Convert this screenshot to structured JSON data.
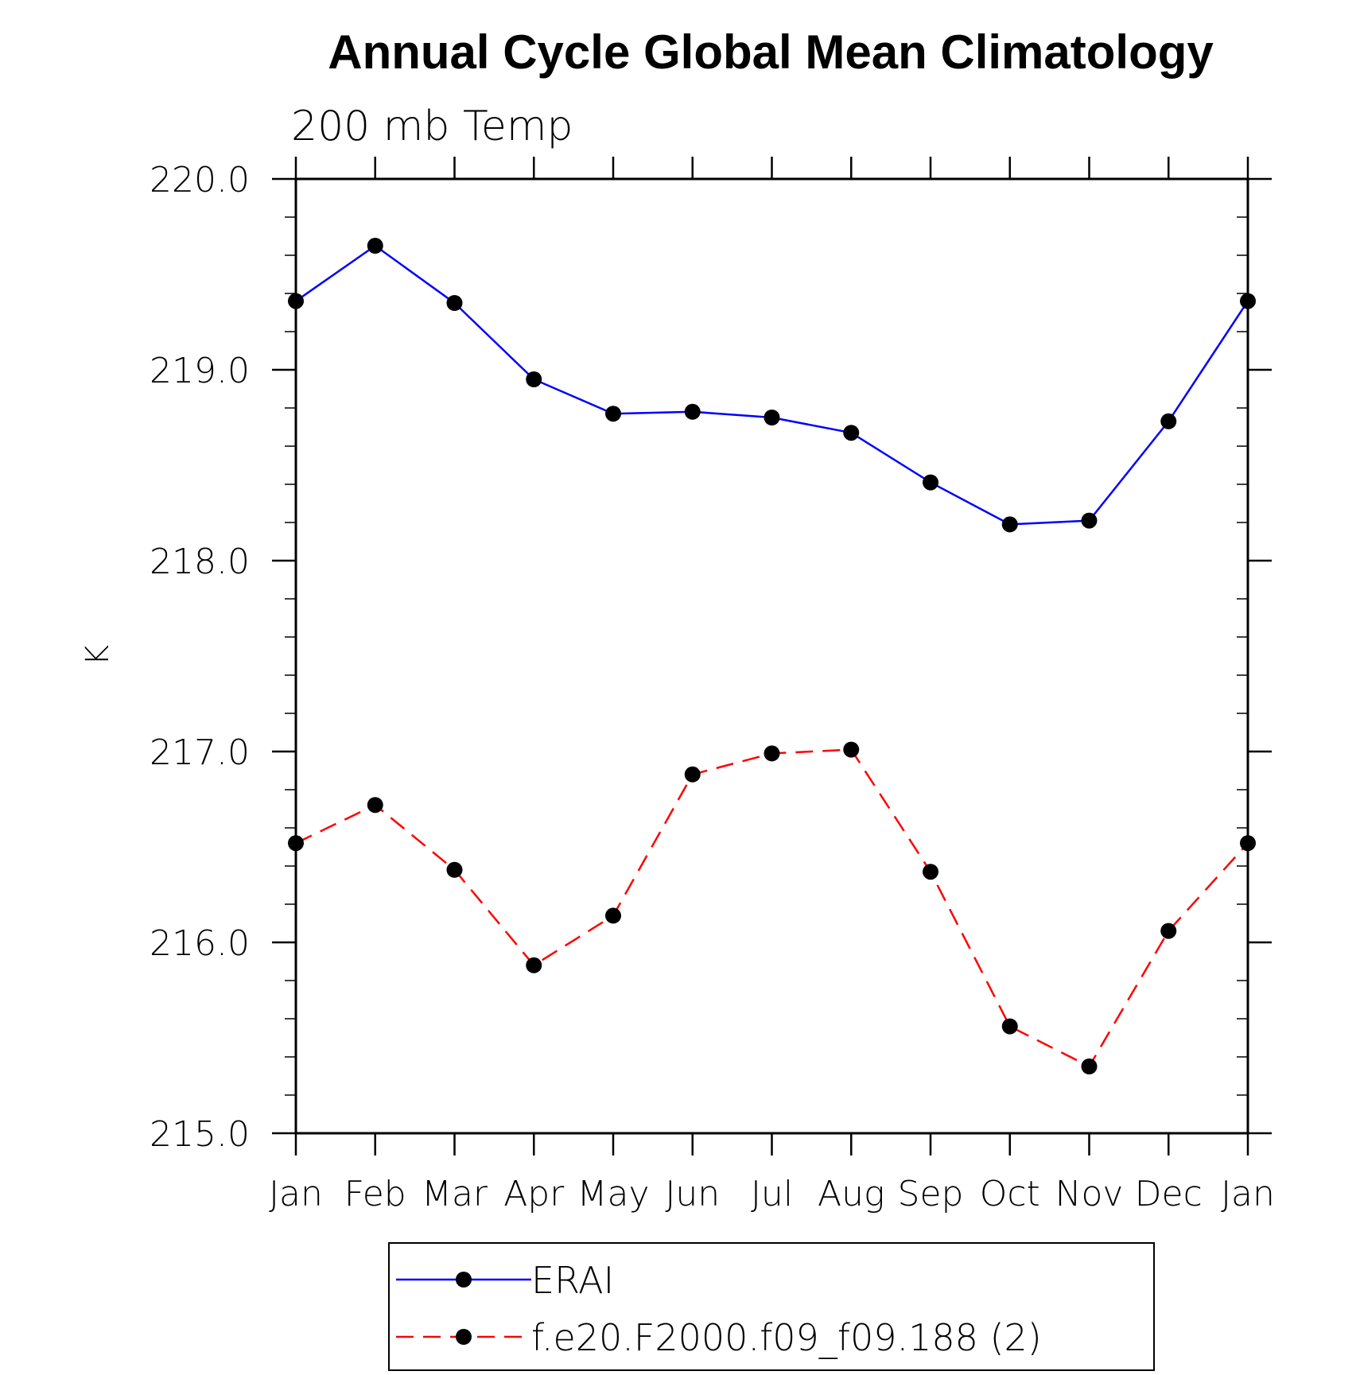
{
  "chart_data": {
    "type": "line",
    "title": "Annual Cycle Global Mean Climatology",
    "subtitle": "200 mb Temp",
    "ylabel": "K",
    "xlabel": "",
    "categories": [
      "Jan",
      "Feb",
      "Mar",
      "Apr",
      "May",
      "Jun",
      "Jul",
      "Aug",
      "Sep",
      "Oct",
      "Nov",
      "Dec",
      "Jan"
    ],
    "ylim": [
      215.0,
      220.0
    ],
    "yticks": [
      "215.0",
      "216.0",
      "217.0",
      "218.0",
      "219.0",
      "220.0"
    ],
    "grid": false,
    "legend_position": "bottom",
    "series": [
      {
        "name": "ERAI",
        "color": "#0000ff",
        "line_style": "solid",
        "marker": "filled-circle",
        "values": [
          219.36,
          219.65,
          219.35,
          218.95,
          218.77,
          218.78,
          218.75,
          218.67,
          218.41,
          218.19,
          218.21,
          218.73,
          219.36
        ]
      },
      {
        "name": "f.e20.F2000.f09_f09.188 (2)",
        "color": "#ff0000",
        "line_style": "dashed",
        "marker": "filled-circle",
        "values": [
          216.52,
          216.72,
          216.38,
          215.88,
          216.14,
          216.88,
          216.99,
          217.01,
          216.37,
          215.56,
          215.35,
          216.06,
          216.52
        ]
      }
    ]
  }
}
